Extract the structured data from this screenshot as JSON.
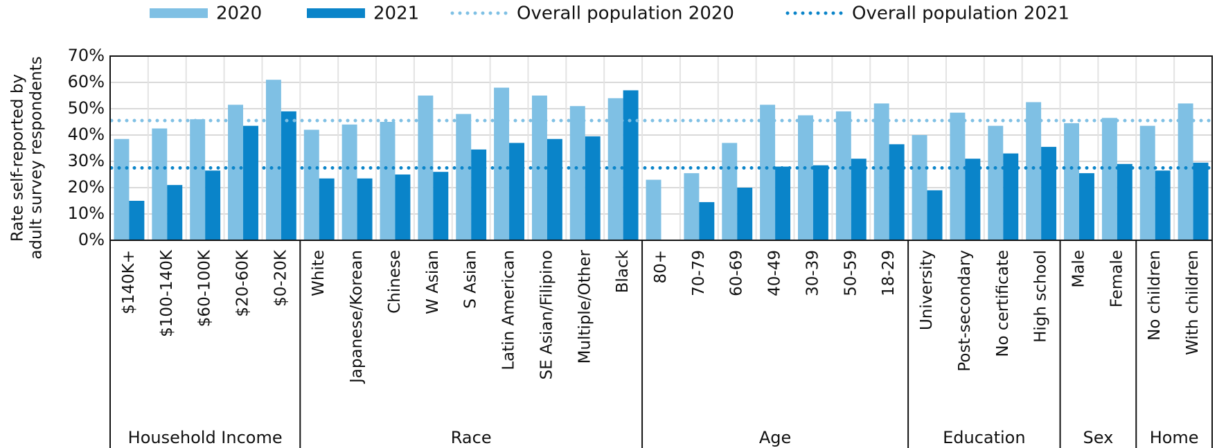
{
  "chart_data": {
    "type": "bar",
    "ylabel": [
      "Rate self-reported by",
      "adult survey respondents"
    ],
    "groups": [
      {
        "name": "Household Income",
        "categories": [
          "$140K+",
          "$100-140K",
          "$60-100K",
          "$20-60K",
          "$0-20K"
        ]
      },
      {
        "name": "Race",
        "categories": [
          "White",
          "Japanese/Korean",
          "Chinese",
          "W Asian",
          "S Asian",
          "Latin American",
          "SE Asian/Filipino",
          "Multiple/Other",
          "Black"
        ]
      },
      {
        "name": "Age",
        "categories": [
          "80+",
          "70-79",
          "60-69",
          "40-49",
          "30-39",
          "50-59",
          "18-29"
        ]
      },
      {
        "name": "Education",
        "categories": [
          "University",
          "Post-secondary",
          "No certificate",
          "High school"
        ]
      },
      {
        "name": "Sex",
        "categories": [
          "Male",
          "Female"
        ]
      },
      {
        "name": "Home",
        "categories": [
          "No children",
          "With children"
        ]
      }
    ],
    "series": [
      {
        "name": "2020",
        "color": "#7fc0e4",
        "values": [
          38.5,
          42.5,
          46,
          51.5,
          61,
          42,
          44,
          45,
          55,
          48,
          58,
          55,
          51,
          54,
          23,
          25.5,
          37,
          51.5,
          47.5,
          49,
          52,
          40,
          48.5,
          43.5,
          52.5,
          44.5,
          46.5,
          43.5,
          52
        ]
      },
      {
        "name": "2021",
        "color": "#0a84c9",
        "values": [
          15,
          21,
          26.5,
          43.5,
          49,
          23.5,
          23.5,
          25,
          26,
          34.5,
          37,
          38.5,
          39.5,
          57,
          null,
          14.5,
          20,
          28,
          28.5,
          31,
          36.5,
          19,
          31,
          33,
          35.5,
          25.5,
          29,
          26.5,
          29.5
        ]
      }
    ],
    "reference_lines": [
      {
        "name": "Overall population 2020",
        "color": "#7fc0e4",
        "value": 45.5
      },
      {
        "name": "Overall population 2021",
        "color": "#0a84c9",
        "value": 27.5
      }
    ],
    "ylim": [
      0,
      70
    ],
    "yticks": [
      {
        "value": 0,
        "label": "0%"
      },
      {
        "value": 10,
        "label": "10%"
      },
      {
        "value": 20,
        "label": "20%"
      },
      {
        "value": 30,
        "label": "30%"
      },
      {
        "value": 40,
        "label": "40%"
      },
      {
        "value": 50,
        "label": "50%"
      },
      {
        "value": 60,
        "label": "60%"
      },
      {
        "value": 70,
        "label": "70%"
      }
    ],
    "grid": true
  }
}
